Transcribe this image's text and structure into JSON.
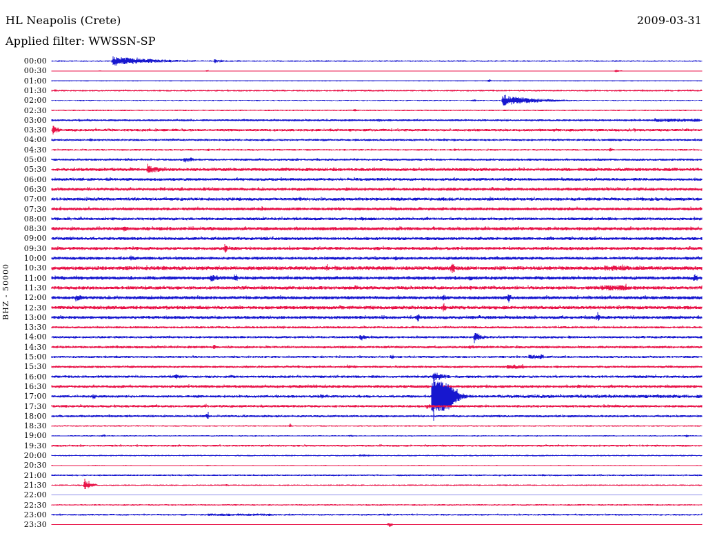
{
  "header": {
    "station": "HL Neapolis (Crete)",
    "filter": "Applied filter: WWSSN-SP",
    "date": "2009-03-31"
  },
  "colors": {
    "trace_blue": "#1717cf",
    "trace_red": "#e81348",
    "background": "#ffffff",
    "text": "#000000"
  },
  "chart_data": {
    "type": "line",
    "title": "HL Neapolis (Crete)",
    "subtitle": "Applied filter: WWSSN-SP",
    "date": "2009-03-31",
    "ylabel": "BHZ - 50000",
    "xlabel": "",
    "row_duration_minutes": 30,
    "rows_count": 48,
    "legend": "none",
    "grid": false,
    "event_format": "[type(b=decaying burst, s=spike, g=large clipped event, e=elevated noise), start_minute, duration_minutes, amplitude_px]",
    "rows": [
      {
        "time": "00:00",
        "color": "blue",
        "noise": 1.0,
        "events": [
          [
            "b",
            2.8,
            4.1,
            7
          ],
          [
            "b",
            7.5,
            1.3,
            3
          ],
          [
            "s",
            8.6,
            0,
            2
          ]
        ]
      },
      {
        "time": "00:30",
        "color": "red",
        "noise": 0.4,
        "events": [
          [
            "s",
            2.2,
            0,
            1.2
          ],
          [
            "s",
            7.2,
            0,
            1.5
          ],
          [
            "b",
            26.0,
            0.6,
            2
          ]
        ]
      },
      {
        "time": "01:00",
        "color": "blue",
        "noise": 0.8,
        "events": [
          [
            "s",
            20.2,
            0,
            2
          ]
        ]
      },
      {
        "time": "01:30",
        "color": "red",
        "noise": 1.2,
        "events": []
      },
      {
        "time": "02:00",
        "color": "blue",
        "noise": 0.7,
        "events": [
          [
            "s",
            19.5,
            0,
            2
          ],
          [
            "b",
            20.8,
            3.2,
            8
          ]
        ]
      },
      {
        "time": "02:30",
        "color": "red",
        "noise": 1.0,
        "events": [
          [
            "s",
            14.0,
            0,
            2.5
          ]
        ]
      },
      {
        "time": "03:00",
        "color": "blue",
        "noise": 1.5,
        "events": [
          [
            "s",
            1.3,
            0,
            3
          ],
          [
            "s",
            15.1,
            0,
            3
          ],
          [
            "e",
            27.8,
            2.1,
            2.5
          ]
        ]
      },
      {
        "time": "03:30",
        "color": "red",
        "noise": 1.8,
        "events": [
          [
            "b",
            0.05,
            0.6,
            7
          ],
          [
            "s",
            4.9,
            0,
            3
          ],
          [
            "s",
            23.2,
            0,
            3
          ],
          [
            "s",
            26.9,
            0,
            3
          ]
        ]
      },
      {
        "time": "04:00",
        "color": "blue",
        "noise": 1.5,
        "events": [
          [
            "s",
            1.8,
            0,
            3
          ],
          [
            "s",
            18.6,
            0,
            2.5
          ]
        ]
      },
      {
        "time": "04:30",
        "color": "red",
        "noise": 1.2,
        "events": [
          [
            "s",
            7.2,
            0,
            2.5
          ],
          [
            "s",
            18.6,
            0,
            2.5
          ],
          [
            "s",
            25.8,
            0,
            3
          ]
        ]
      },
      {
        "time": "05:00",
        "color": "blue",
        "noise": 1.6,
        "events": [
          [
            "b",
            6.1,
            1.0,
            5
          ],
          [
            "s",
            25.3,
            0,
            2.5
          ]
        ]
      },
      {
        "time": "05:30",
        "color": "red",
        "noise": 2.2,
        "events": [
          [
            "b",
            4.4,
            1.8,
            6
          ],
          [
            "s",
            18.3,
            0,
            3
          ]
        ]
      },
      {
        "time": "06:00",
        "color": "blue",
        "noise": 2.0,
        "events": [
          [
            "s",
            8.8,
            0,
            3
          ],
          [
            "s",
            26.9,
            0,
            3
          ]
        ]
      },
      {
        "time": "06:30",
        "color": "red",
        "noise": 2.2,
        "events": [
          [
            "s",
            7.0,
            0,
            4
          ],
          [
            "s",
            18.6,
            0,
            3.5
          ]
        ]
      },
      {
        "time": "07:00",
        "color": "blue",
        "noise": 2.2,
        "events": [
          [
            "s",
            5.3,
            0,
            3
          ],
          [
            "s",
            11.9,
            0,
            3
          ],
          [
            "s",
            26.6,
            0,
            3
          ]
        ]
      },
      {
        "time": "07:30",
        "color": "red",
        "noise": 2.2,
        "events": [
          [
            "s",
            9.7,
            0,
            4
          ]
        ]
      },
      {
        "time": "08:00",
        "color": "blue",
        "noise": 2.0,
        "events": [
          [
            "s",
            14.3,
            0,
            3.5
          ]
        ]
      },
      {
        "time": "08:30",
        "color": "red",
        "noise": 2.4,
        "events": [
          [
            "b",
            3.2,
            1.0,
            5
          ],
          [
            "s",
            4.4,
            0,
            4
          ]
        ]
      },
      {
        "time": "09:00",
        "color": "blue",
        "noise": 2.2,
        "events": [
          [
            "s",
            6.6,
            0,
            3.5
          ]
        ]
      },
      {
        "time": "09:30",
        "color": "red",
        "noise": 2.2,
        "events": [
          [
            "s",
            8.0,
            0,
            8
          ]
        ]
      },
      {
        "time": "10:00",
        "color": "blue",
        "noise": 2.2,
        "events": [
          [
            "b",
            3.6,
            0.7,
            5
          ],
          [
            "s",
            15.9,
            0,
            3.5
          ]
        ]
      },
      {
        "time": "10:30",
        "color": "red",
        "noise": 2.7,
        "events": [
          [
            "s",
            12.7,
            0,
            5
          ],
          [
            "s",
            18.5,
            0,
            9
          ],
          [
            "e",
            25.5,
            1.0,
            4
          ]
        ]
      },
      {
        "time": "11:00",
        "color": "blue",
        "noise": 2.4,
        "events": [
          [
            "b",
            7.3,
            1.4,
            6
          ],
          [
            "s",
            8.5,
            0,
            6
          ],
          [
            "s",
            19.3,
            0,
            5
          ],
          [
            "s",
            29.7,
            0,
            7
          ]
        ]
      },
      {
        "time": "11:30",
        "color": "red",
        "noise": 2.4,
        "events": [
          [
            "s",
            19.3,
            0,
            5
          ],
          [
            "e",
            25.3,
            1.3,
            4
          ]
        ]
      },
      {
        "time": "12:00",
        "color": "blue",
        "noise": 2.4,
        "events": [
          [
            "b",
            1.1,
            0.8,
            7
          ],
          [
            "s",
            18.1,
            0,
            5
          ],
          [
            "s",
            21.1,
            0,
            7
          ]
        ]
      },
      {
        "time": "12:30",
        "color": "red",
        "noise": 2.4,
        "events": [
          [
            "s",
            5.3,
            0,
            4
          ],
          [
            "s",
            18.1,
            0,
            7
          ]
        ]
      },
      {
        "time": "13:00",
        "color": "blue",
        "noise": 2.2,
        "events": [
          [
            "s",
            16.9,
            0,
            6
          ],
          [
            "s",
            25.2,
            0,
            6
          ]
        ]
      },
      {
        "time": "13:30",
        "color": "red",
        "noise": 1.6,
        "events": [
          [
            "s",
            10.7,
            0,
            3
          ]
        ]
      },
      {
        "time": "14:00",
        "color": "blue",
        "noise": 1.7,
        "events": [
          [
            "b",
            14.2,
            0.8,
            6
          ],
          [
            "b",
            19.5,
            0.7,
            9
          ]
        ]
      },
      {
        "time": "14:30",
        "color": "red",
        "noise": 1.7,
        "events": [
          [
            "s",
            7.5,
            0,
            4
          ],
          [
            "s",
            19.3,
            0,
            3
          ]
        ]
      },
      {
        "time": "15:00",
        "color": "blue",
        "noise": 1.5,
        "events": [
          [
            "s",
            15.7,
            0,
            4
          ],
          [
            "e",
            22.0,
            0.7,
            3
          ]
        ]
      },
      {
        "time": "15:30",
        "color": "red",
        "noise": 1.6,
        "events": [
          [
            "s",
            13.7,
            0,
            3
          ],
          [
            "e",
            21.0,
            0.8,
            3
          ]
        ]
      },
      {
        "time": "16:00",
        "color": "blue",
        "noise": 1.8,
        "events": [
          [
            "b",
            5.7,
            1.0,
            4
          ],
          [
            "b",
            17.6,
            1.1,
            8
          ]
        ]
      },
      {
        "time": "16:30",
        "color": "red",
        "noise": 2.0,
        "events": [
          [
            "s",
            24.3,
            0,
            3
          ]
        ]
      },
      {
        "time": "17:00",
        "color": "blue",
        "noise": 1.8,
        "events": [
          [
            "b",
            1.9,
            0.6,
            4
          ],
          [
            "s",
            8.0,
            0,
            3
          ],
          [
            "b",
            12.4,
            0.6,
            4
          ],
          [
            "g",
            17.5,
            3.0,
            38
          ],
          [
            "e",
            20.6,
            9.4,
            2.3
          ]
        ]
      },
      {
        "time": "17:30",
        "color": "red",
        "noise": 1.8,
        "events": [
          [
            "s",
            7.1,
            0,
            3
          ],
          [
            "b",
            17.3,
            1.0,
            4
          ]
        ]
      },
      {
        "time": "18:00",
        "color": "blue",
        "noise": 1.6,
        "events": [
          [
            "s",
            7.2,
            0,
            5
          ]
        ]
      },
      {
        "time": "18:30",
        "color": "red",
        "noise": 1.0,
        "events": [
          [
            "s",
            11.0,
            0,
            2.5
          ]
        ]
      },
      {
        "time": "19:00",
        "color": "blue",
        "noise": 0.9,
        "events": [
          [
            "s",
            2.4,
            0,
            2
          ],
          [
            "s",
            13.8,
            0,
            2.5
          ],
          [
            "s",
            29.3,
            0,
            2.5
          ]
        ]
      },
      {
        "time": "19:30",
        "color": "red",
        "noise": 1.4,
        "events": []
      },
      {
        "time": "20:00",
        "color": "blue",
        "noise": 1.0,
        "events": [
          [
            "b",
            14.2,
            1.4,
            2.5
          ]
        ]
      },
      {
        "time": "20:30",
        "color": "red",
        "noise": 0.6,
        "events": [
          [
            "s",
            7.2,
            0,
            1.5
          ]
        ]
      },
      {
        "time": "21:00",
        "color": "blue",
        "noise": 1.2,
        "events": [
          [
            "s",
            22.7,
            0,
            2.5
          ]
        ]
      },
      {
        "time": "21:30",
        "color": "red",
        "noise": 1.0,
        "events": [
          [
            "b",
            1.5,
            0.7,
            8
          ],
          [
            "s",
            8.1,
            0,
            2
          ]
        ]
      },
      {
        "time": "22:00",
        "color": "blue",
        "noise": 0.4,
        "events": []
      },
      {
        "time": "22:30",
        "color": "red",
        "noise": 1.0,
        "events": []
      },
      {
        "time": "23:00",
        "color": "blue",
        "noise": 1.2,
        "events": [
          [
            "e",
            7.2,
            3.0,
            1.8
          ]
        ]
      },
      {
        "time": "23:30",
        "color": "red",
        "noise": 0.5,
        "events": [
          [
            "s",
            15.6,
            0,
            4
          ]
        ]
      }
    ]
  }
}
